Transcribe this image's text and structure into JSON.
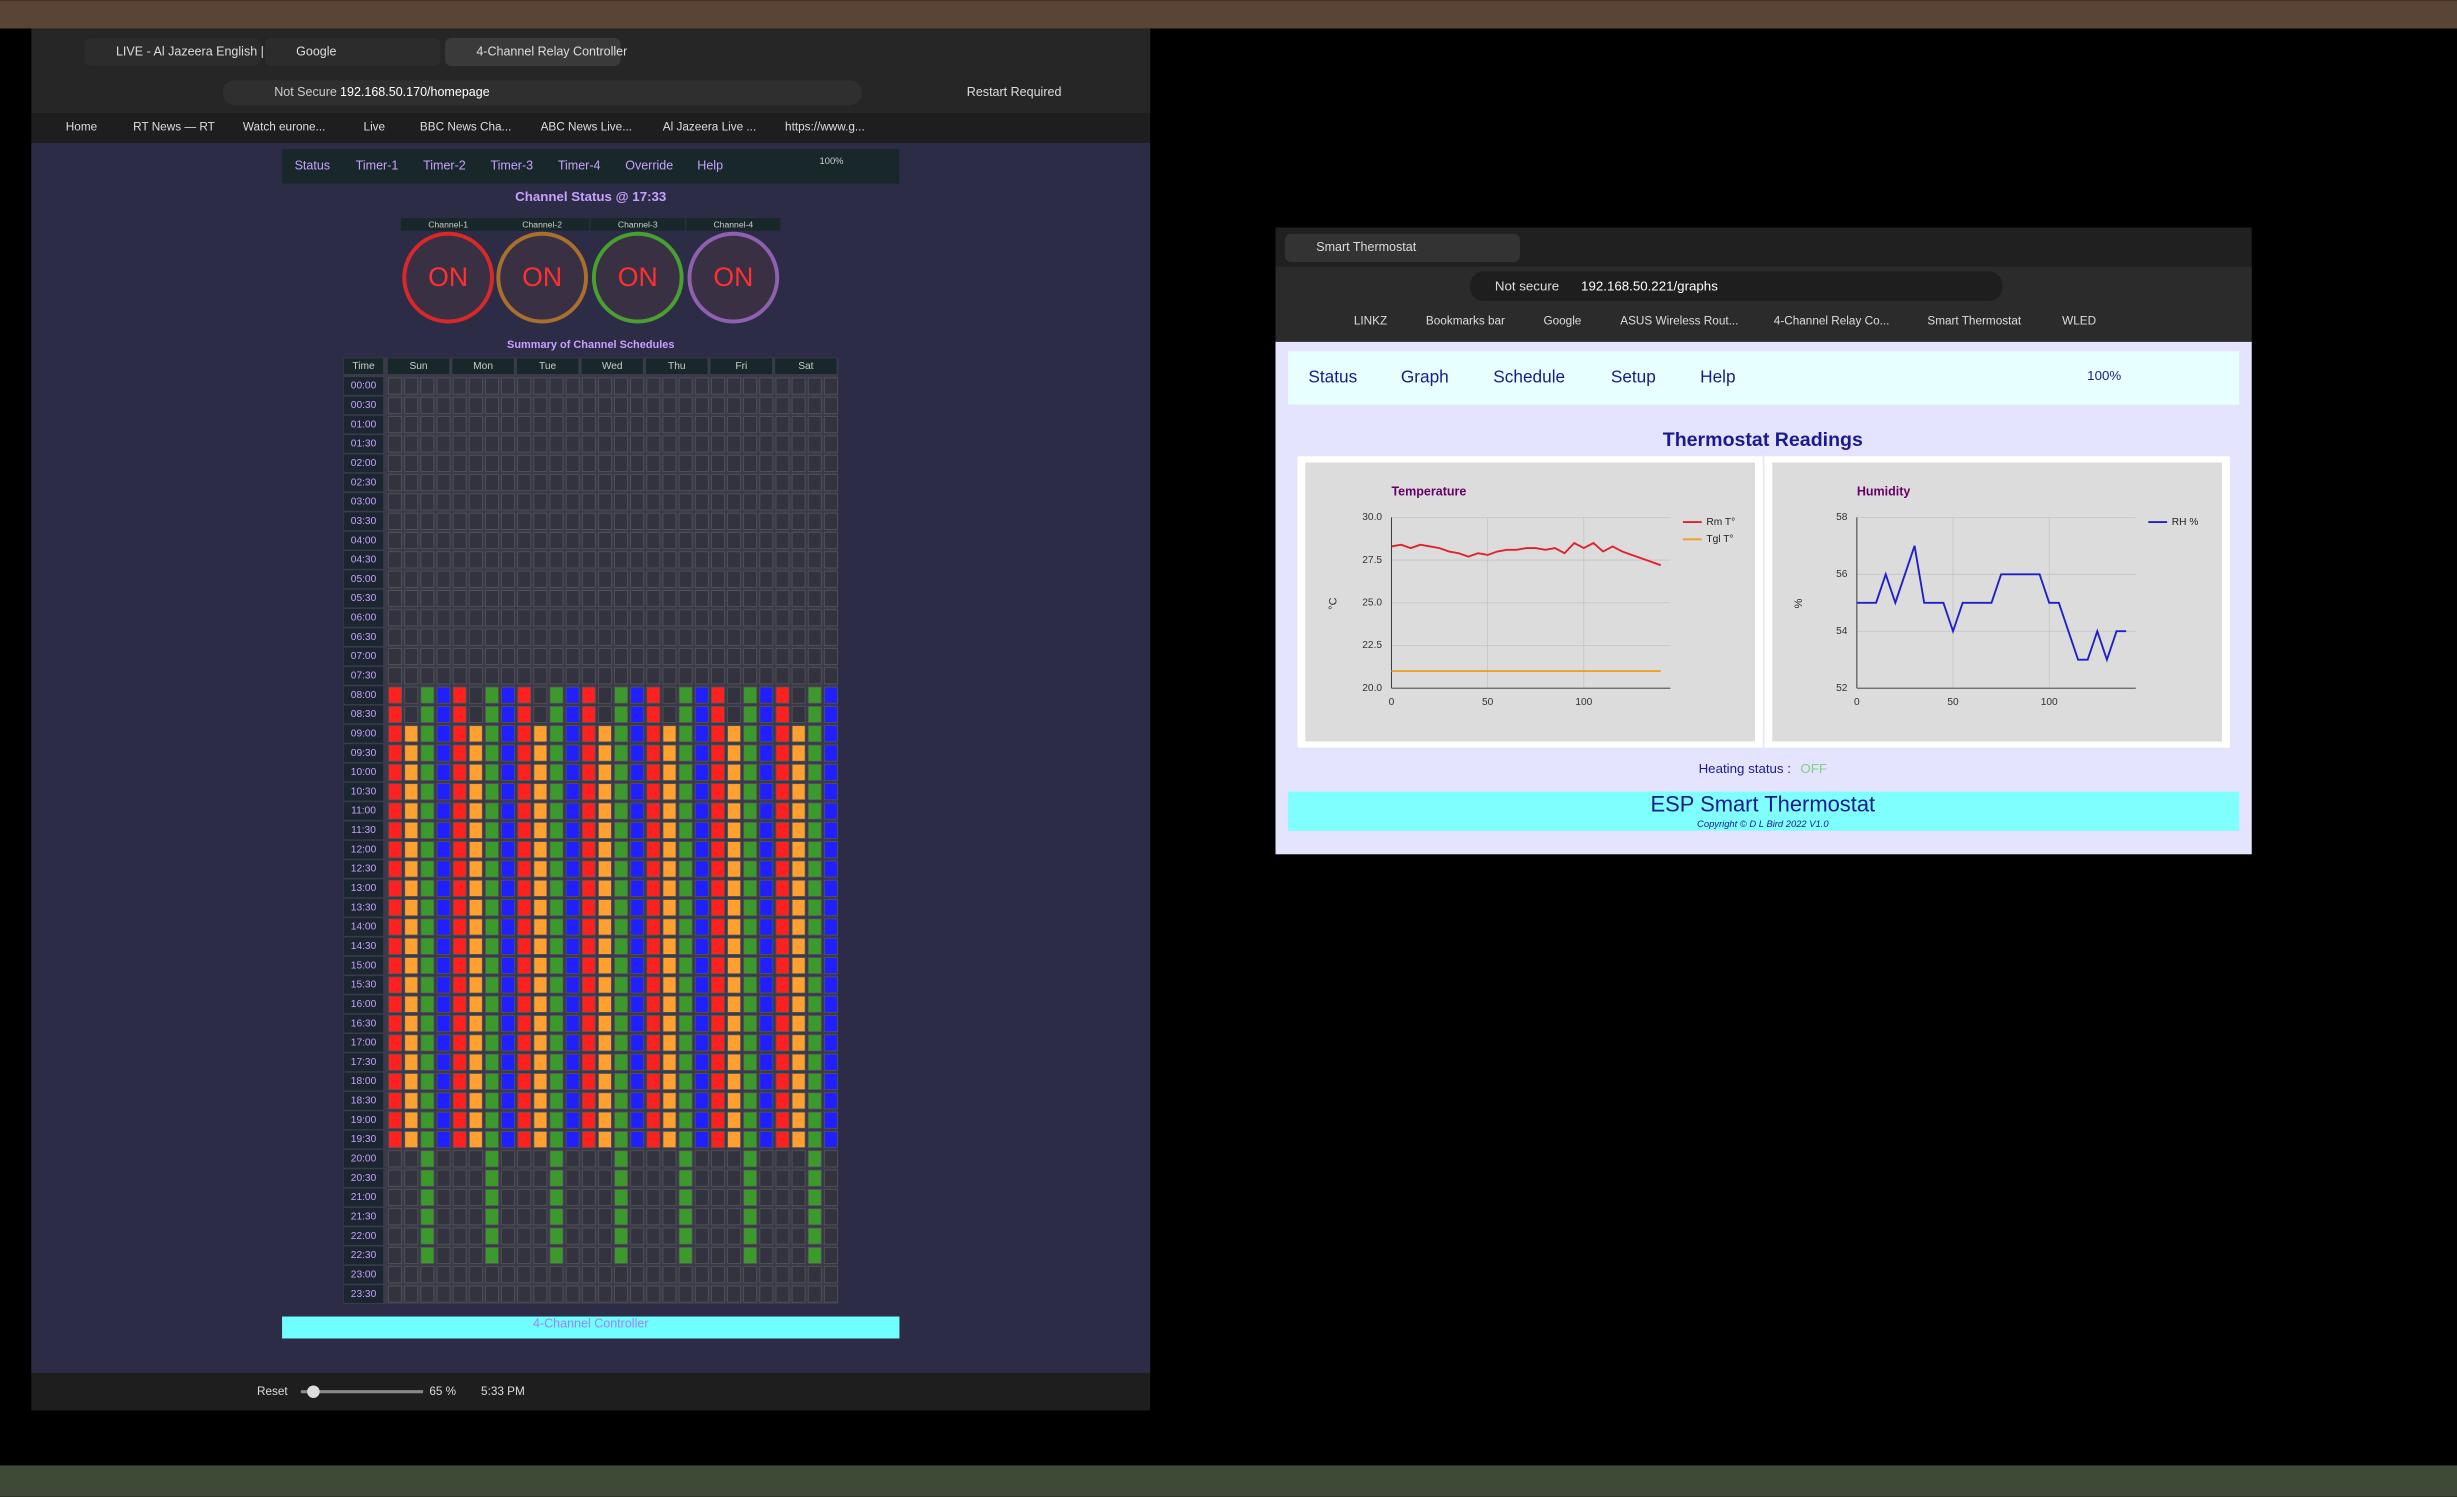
{
  "browser_left": {
    "tabs": [
      "LIVE - Al Jazeera English | V",
      "Google",
      "4-Channel Relay Controller"
    ],
    "security": "Not Secure",
    "url": "192.168.50.170/homepage",
    "restart": "Restart Required",
    "bookmarks": [
      "Home",
      "RT News — RT",
      "Watch eurone...",
      "Live",
      "BBC News Cha...",
      "ABC News Live...",
      "Al Jazeera Live ...",
      "https://www.g..."
    ],
    "zoom_reset": "Reset",
    "zoom": "65 %",
    "clock": "5:33 PM"
  },
  "relay_page": {
    "nav": [
      "Status",
      "Timer-1",
      "Timer-2",
      "Timer-3",
      "Timer-4",
      "Override",
      "Help"
    ],
    "wifi": "100%",
    "status_title": "Channel Status @ 17:33",
    "channels": [
      {
        "name": "Channel-1",
        "state": "ON",
        "color": "#d82828"
      },
      {
        "name": "Channel-2",
        "state": "ON",
        "color": "#a8702c"
      },
      {
        "name": "Channel-3",
        "state": "ON",
        "color": "#48a030"
      },
      {
        "name": "Channel-4",
        "state": "ON",
        "color": "#9060b0"
      }
    ],
    "schedule_title": "Summary of Channel Schedules",
    "schedule_header": [
      "Time",
      "Sun",
      "Mon",
      "Tue",
      "Wed",
      "Thu",
      "Fri",
      "Sat"
    ],
    "times": [
      "00:00",
      "00:30",
      "01:00",
      "01:30",
      "02:00",
      "02:30",
      "03:00",
      "03:30",
      "04:00",
      "04:30",
      "05:00",
      "05:30",
      "06:00",
      "06:30",
      "07:00",
      "07:30",
      "08:00",
      "08:30",
      "09:00",
      "09:30",
      "10:00",
      "10:30",
      "11:00",
      "11:30",
      "12:00",
      "12:30",
      "13:00",
      "13:30",
      "14:00",
      "14:30",
      "15:00",
      "15:30",
      "16:00",
      "16:30",
      "17:00",
      "17:30",
      "18:00",
      "18:30",
      "19:00",
      "19:30",
      "20:00",
      "20:30",
      "21:00",
      "21:30",
      "22:00",
      "22:30",
      "23:00",
      "23:30"
    ],
    "schedule_colors": [
      "#ff2020",
      "#ffa030",
      "#3c9a2c",
      "#2020ff"
    ],
    "channel_on": [
      "000000000000000011111111111111111111111100000000",
      "000000000000000000111111111111111111111100000000",
      "000000000000000011111111111111111111111111111100",
      "000000000000000011111111111111111111111100000000"
    ],
    "footer": "4-Channel Controller"
  },
  "browser_right": {
    "tab": "Smart Thermostat",
    "security": "Not secure",
    "url": "192.168.50.221/graphs",
    "bookmarks": [
      "LINKZ",
      "Bookmarks bar",
      "Google",
      "ASUS Wireless Rout...",
      "4-Channel Relay Co...",
      "Smart Thermostat",
      "WLED"
    ]
  },
  "thermostat_page": {
    "nav": [
      "Status",
      "Graph",
      "Schedule",
      "Setup",
      "Help"
    ],
    "wifi": "100%",
    "title": "Thermostat Readings",
    "heating_label": "Heating status :",
    "heating_state": "OFF",
    "footer_title": "ESP Smart Thermostat",
    "copyright": "Copyright © D L Bird 2022 V1.0"
  },
  "chart_data": [
    {
      "type": "line",
      "title": "Temperature",
      "y_label": "°C",
      "x": [
        0,
        5,
        10,
        15,
        20,
        25,
        30,
        35,
        40,
        45,
        50,
        55,
        60,
        65,
        70,
        75,
        80,
        85,
        90,
        95,
        100,
        105,
        110,
        115,
        120,
        125,
        130,
        135,
        140
      ],
      "series": [
        {
          "name": "Rm T°",
          "color": "#e0202c",
          "values": [
            28.3,
            28.4,
            28.2,
            28.4,
            28.3,
            28.2,
            28.0,
            27.9,
            27.7,
            27.9,
            27.8,
            28.0,
            28.1,
            28.1,
            28.2,
            28.2,
            28.1,
            28.2,
            27.9,
            28.5,
            28.2,
            28.5,
            28.0,
            28.3,
            28.0,
            27.8,
            27.6,
            27.4,
            27.2
          ]
        },
        {
          "name": "Tgl T°",
          "color": "#f0a020",
          "values": [
            21,
            21,
            21,
            21,
            21,
            21,
            21,
            21,
            21,
            21,
            21,
            21,
            21,
            21,
            21,
            21,
            21,
            21,
            21,
            21,
            21,
            21,
            21,
            21,
            21,
            21,
            21,
            21,
            21
          ]
        }
      ],
      "xlim": [
        0,
        145
      ],
      "xticks": [
        0,
        50,
        100
      ],
      "ylim": [
        20,
        30
      ],
      "yticks": [
        {
          "value": 20,
          "label": "20.0"
        },
        {
          "value": 22.5,
          "label": "22.5"
        },
        {
          "value": 25,
          "label": "25.0"
        },
        {
          "value": 27.5,
          "label": "27.5"
        },
        {
          "value": 30,
          "label": "30.0"
        }
      ],
      "grid": true
    },
    {
      "type": "line",
      "title": "Humidity",
      "y_label": "%",
      "x": [
        0,
        5,
        10,
        15,
        20,
        25,
        30,
        35,
        40,
        45,
        50,
        55,
        60,
        65,
        70,
        75,
        80,
        85,
        90,
        95,
        100,
        105,
        110,
        115,
        120,
        125,
        130,
        135,
        140
      ],
      "series": [
        {
          "name": "RH %",
          "color": "#2020c8",
          "values": [
            55,
            55,
            55,
            56,
            55,
            56,
            57,
            55,
            55,
            55,
            54,
            55,
            55,
            55,
            55,
            56,
            56,
            56,
            56,
            56,
            55,
            55,
            54,
            53,
            53,
            54,
            53,
            54,
            54
          ]
        }
      ],
      "xlim": [
        0,
        145
      ],
      "xticks": [
        0,
        50,
        100
      ],
      "ylim": [
        52,
        58
      ],
      "yticks": [
        52,
        54,
        56,
        58
      ],
      "grid": true
    }
  ]
}
